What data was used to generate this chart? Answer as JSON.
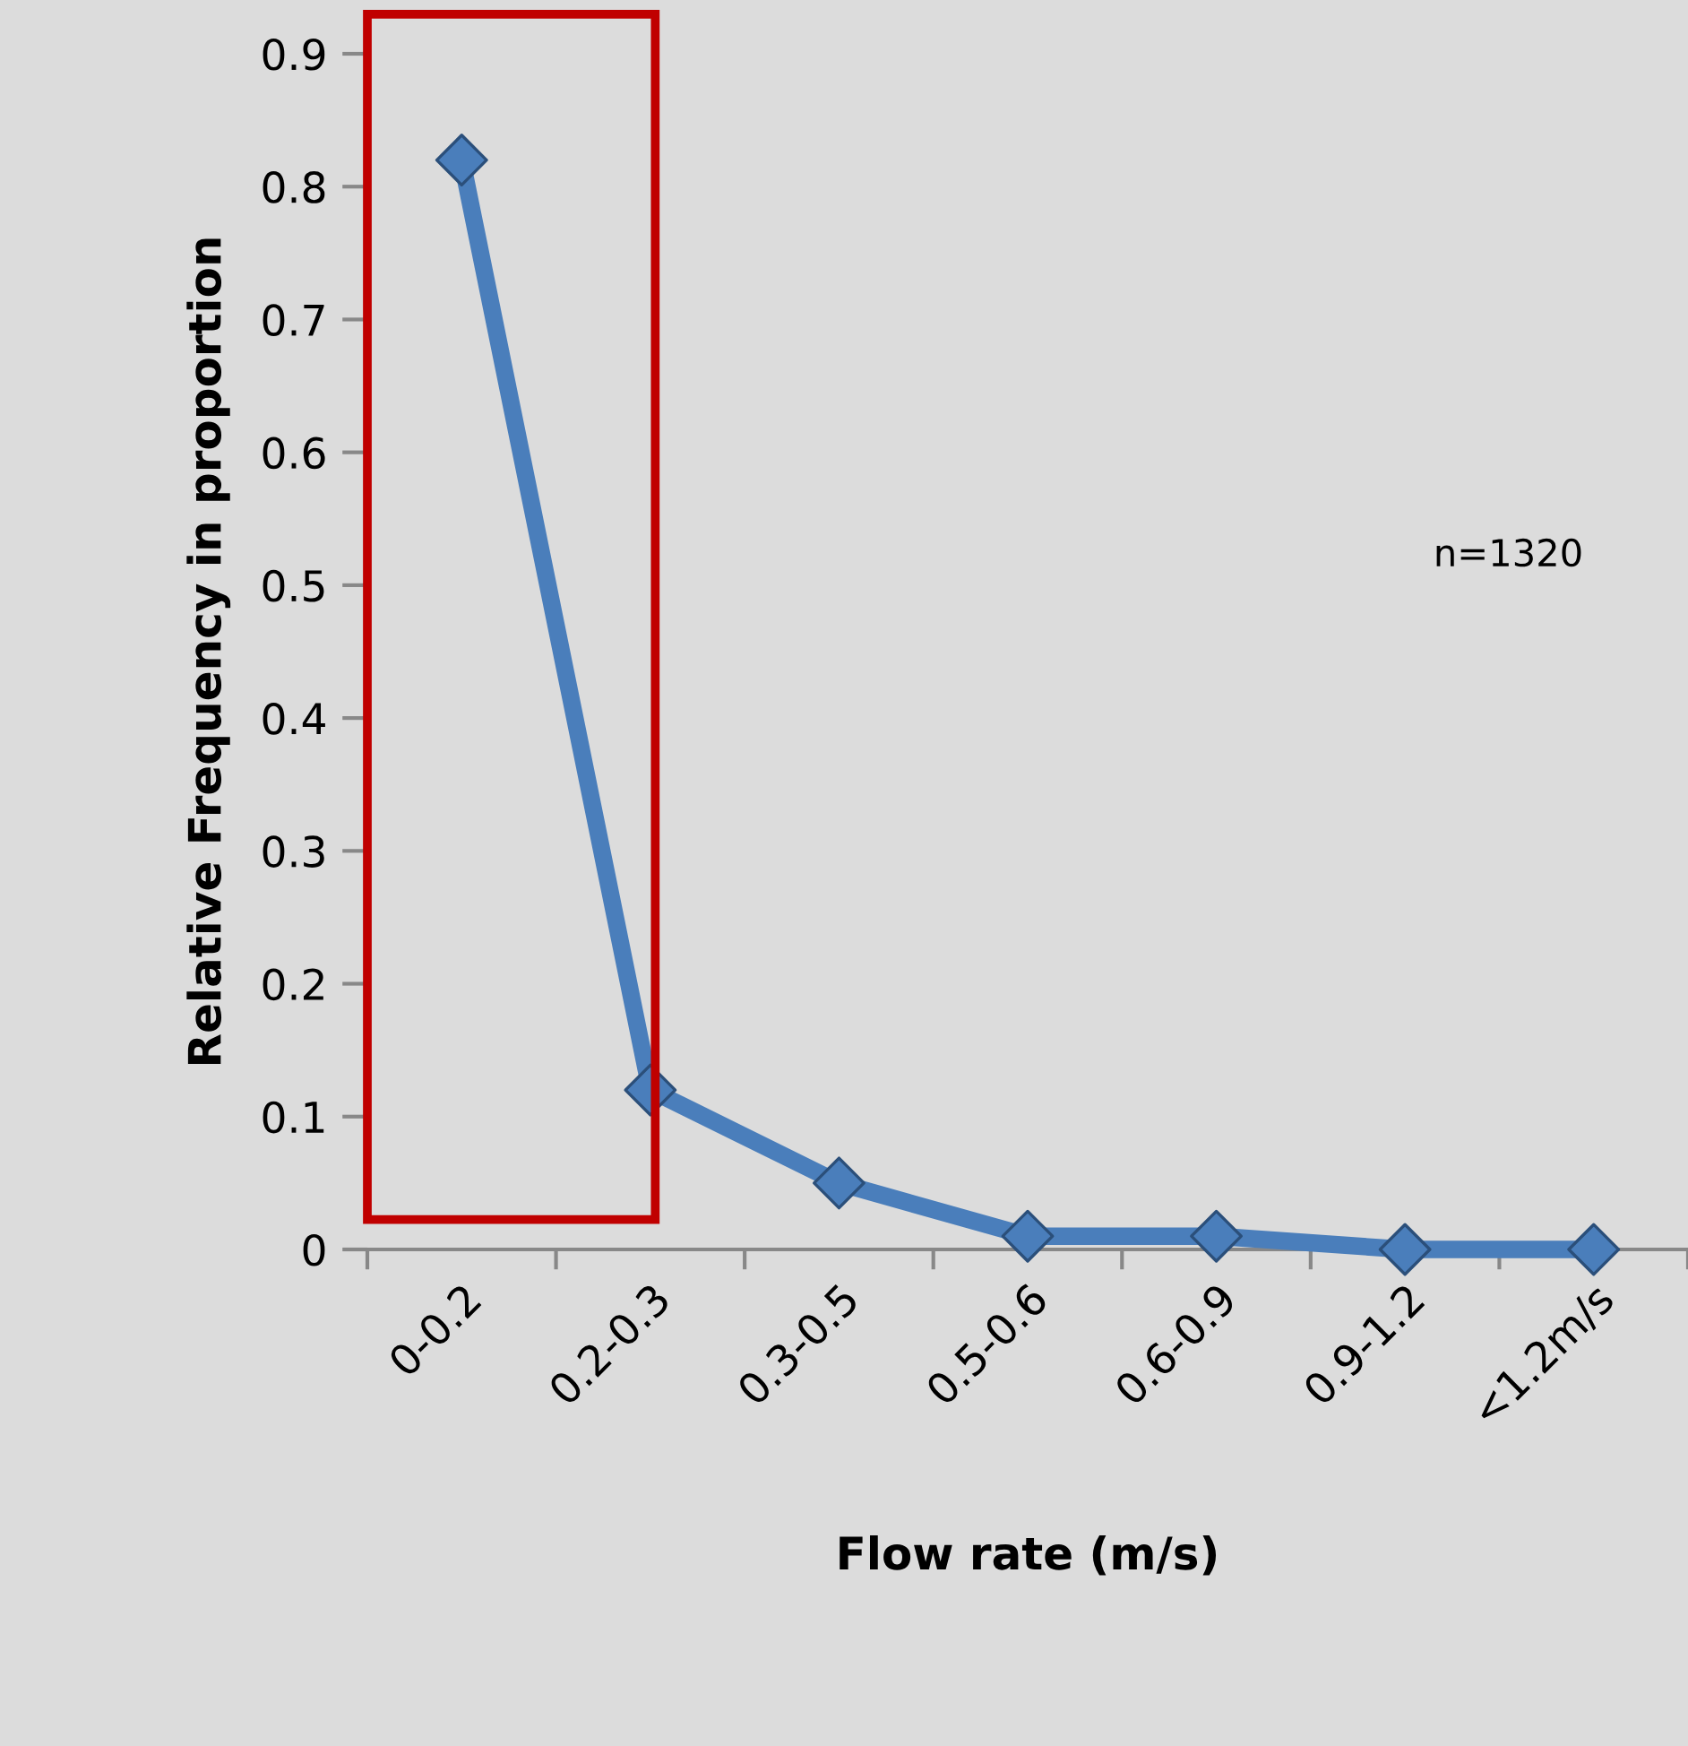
{
  "chart_data": {
    "type": "line",
    "xlabel": "Flow rate (m/s)",
    "ylabel": "Relative Frequency in proportion",
    "categories": [
      "0-0.2",
      "0.2-0.3",
      "0.3-0.5",
      "0.5-0.6",
      "0.6-0.9",
      "0.9-1.2",
      "<1.2m/s"
    ],
    "series": [
      {
        "color": "#4a7ebb",
        "values": [
          0.82,
          0.12,
          0.05,
          0.01,
          0.01,
          0,
          0
        ]
      }
    ],
    "ylim": [
      0,
      0.9
    ],
    "yticks": [
      0,
      0.1,
      0.2,
      0.3,
      0.4,
      0.5,
      0.6,
      0.7,
      0.8,
      0.9
    ],
    "marker": "diamond",
    "line_style": "solid",
    "grid": false,
    "legend": false,
    "annotations": [
      "n=1320"
    ]
  }
}
